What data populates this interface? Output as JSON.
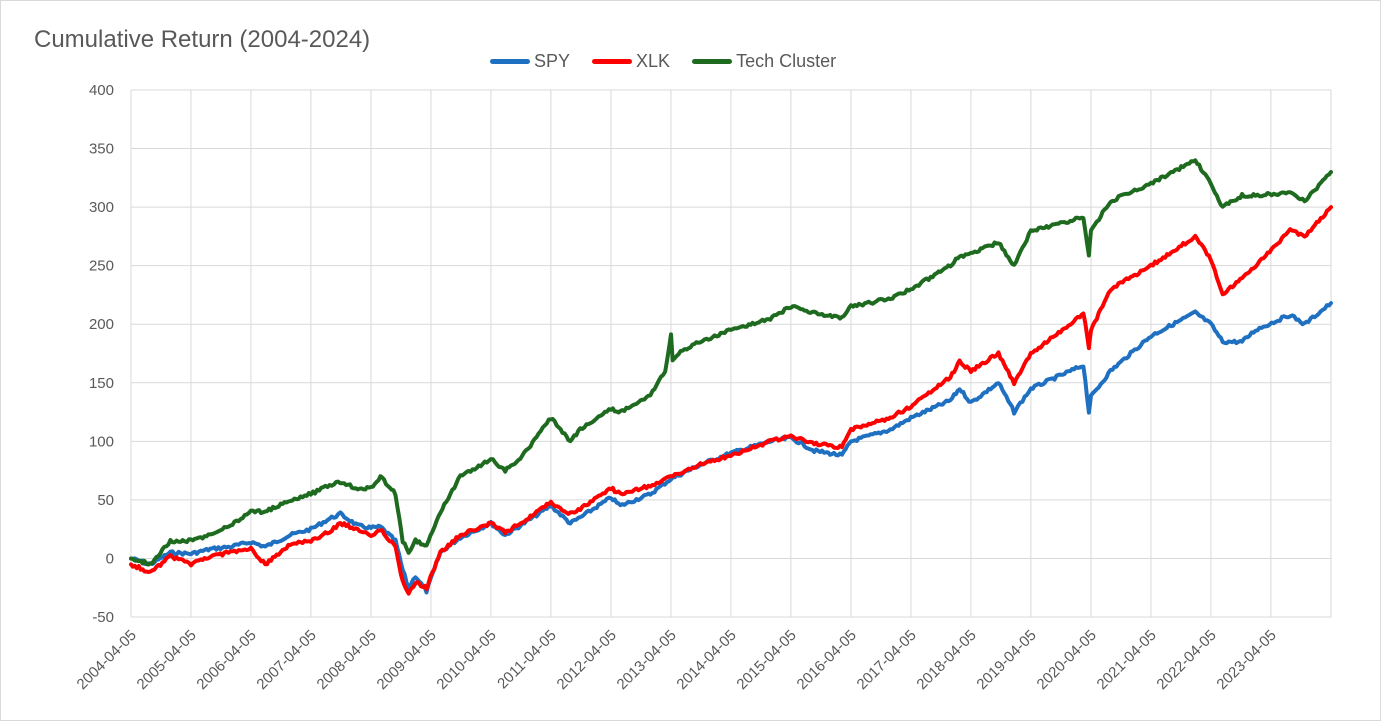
{
  "chart_data": {
    "type": "line",
    "title": "Cumulative Return (2004-2024)",
    "xlabel": "",
    "ylabel": "",
    "ylim": [
      -50,
      400
    ],
    "yticks": [
      -50,
      0,
      50,
      100,
      150,
      200,
      250,
      300,
      350,
      400
    ],
    "grid": true,
    "legend_position": "top",
    "x_start": "2004-04-05",
    "x_end": "2024-04-05",
    "xtick_labels": [
      "2004-04-05",
      "2005-04-05",
      "2006-04-05",
      "2007-04-05",
      "2008-04-05",
      "2009-04-05",
      "2010-04-05",
      "2011-04-05",
      "2012-04-05",
      "2013-04-05",
      "2014-04-05",
      "2015-04-05",
      "2016-04-05",
      "2017-04-05",
      "2018-04-05",
      "2019-04-05",
      "2020-04-05",
      "2021-04-05",
      "2022-04-05",
      "2023-04-05"
    ],
    "series": [
      {
        "name": "SPY",
        "color": "#1f70c1",
        "points": [
          [
            "2004-04-05",
            0
          ],
          [
            "2004-08-01",
            -5
          ],
          [
            "2004-12-01",
            5
          ],
          [
            "2005-04-05",
            4
          ],
          [
            "2005-08-01",
            8
          ],
          [
            "2005-12-01",
            10
          ],
          [
            "2006-04-05",
            14
          ],
          [
            "2006-07-01",
            10
          ],
          [
            "2006-12-01",
            20
          ],
          [
            "2007-04-05",
            25
          ],
          [
            "2007-07-15",
            33
          ],
          [
            "2007-10-01",
            38
          ],
          [
            "2008-01-15",
            28
          ],
          [
            "2008-04-05",
            26
          ],
          [
            "2008-06-01",
            27
          ],
          [
            "2008-09-01",
            15
          ],
          [
            "2008-10-15",
            -10
          ],
          [
            "2008-11-20",
            -25
          ],
          [
            "2009-01-01",
            -15
          ],
          [
            "2009-03-09",
            -28
          ],
          [
            "2009-06-01",
            5
          ],
          [
            "2009-10-01",
            18
          ],
          [
            "2010-04-05",
            30
          ],
          [
            "2010-07-01",
            20
          ],
          [
            "2010-10-01",
            28
          ],
          [
            "2011-04-05",
            45
          ],
          [
            "2011-08-01",
            30
          ],
          [
            "2011-10-01",
            35
          ],
          [
            "2012-04-05",
            52
          ],
          [
            "2012-06-01",
            45
          ],
          [
            "2012-12-01",
            55
          ],
          [
            "2013-04-05",
            68
          ],
          [
            "2013-10-01",
            80
          ],
          [
            "2014-04-05",
            90
          ],
          [
            "2014-12-01",
            100
          ],
          [
            "2015-04-05",
            103
          ],
          [
            "2015-08-25",
            92
          ],
          [
            "2016-02-10",
            88
          ],
          [
            "2016-04-05",
            100
          ],
          [
            "2016-12-01",
            110
          ],
          [
            "2017-04-05",
            120
          ],
          [
            "2017-12-01",
            135
          ],
          [
            "2018-01-26",
            145
          ],
          [
            "2018-04-05",
            133
          ],
          [
            "2018-09-20",
            150
          ],
          [
            "2018-12-24",
            125
          ],
          [
            "2019-04-05",
            145
          ],
          [
            "2019-12-01",
            160
          ],
          [
            "2020-02-19",
            165
          ],
          [
            "2020-03-23",
            125
          ],
          [
            "2020-04-05",
            138
          ],
          [
            "2020-08-01",
            160
          ],
          [
            "2021-04-05",
            190
          ],
          [
            "2021-12-31",
            210
          ],
          [
            "2022-04-05",
            200
          ],
          [
            "2022-06-16",
            185
          ],
          [
            "2022-10-12",
            185
          ],
          [
            "2023-01-01",
            195
          ],
          [
            "2023-07-31",
            208
          ],
          [
            "2023-10-27",
            200
          ],
          [
            "2024-04-05",
            218
          ]
        ]
      },
      {
        "name": "XLK",
        "color": "#ff0000",
        "points": [
          [
            "2004-04-05",
            -5
          ],
          [
            "2004-08-01",
            -12
          ],
          [
            "2004-12-01",
            2
          ],
          [
            "2005-04-05",
            -5
          ],
          [
            "2005-08-01",
            2
          ],
          [
            "2005-12-01",
            5
          ],
          [
            "2006-04-05",
            8
          ],
          [
            "2006-07-01",
            -5
          ],
          [
            "2006-12-01",
            12
          ],
          [
            "2007-04-05",
            15
          ],
          [
            "2007-07-15",
            22
          ],
          [
            "2007-10-01",
            30
          ],
          [
            "2008-01-15",
            25
          ],
          [
            "2008-04-05",
            20
          ],
          [
            "2008-06-01",
            25
          ],
          [
            "2008-09-01",
            10
          ],
          [
            "2008-10-15",
            -20
          ],
          [
            "2008-11-20",
            -30
          ],
          [
            "2009-01-01",
            -20
          ],
          [
            "2009-03-09",
            -25
          ],
          [
            "2009-06-01",
            5
          ],
          [
            "2009-10-01",
            20
          ],
          [
            "2010-04-05",
            30
          ],
          [
            "2010-07-01",
            22
          ],
          [
            "2010-10-01",
            30
          ],
          [
            "2011-04-05",
            48
          ],
          [
            "2011-08-01",
            38
          ],
          [
            "2011-10-01",
            42
          ],
          [
            "2012-04-05",
            60
          ],
          [
            "2012-06-01",
            55
          ],
          [
            "2012-12-01",
            62
          ],
          [
            "2013-04-05",
            70
          ],
          [
            "2013-10-01",
            80
          ],
          [
            "2014-04-05",
            88
          ],
          [
            "2014-12-01",
            100
          ],
          [
            "2015-04-05",
            105
          ],
          [
            "2015-08-25",
            98
          ],
          [
            "2016-02-10",
            95
          ],
          [
            "2016-04-05",
            110
          ],
          [
            "2016-12-01",
            120
          ],
          [
            "2017-04-05",
            130
          ],
          [
            "2017-12-01",
            155
          ],
          [
            "2018-01-26",
            168
          ],
          [
            "2018-04-05",
            160
          ],
          [
            "2018-09-20",
            175
          ],
          [
            "2018-12-24",
            150
          ],
          [
            "2019-04-05",
            175
          ],
          [
            "2019-12-01",
            200
          ],
          [
            "2020-02-19",
            210
          ],
          [
            "2020-03-23",
            180
          ],
          [
            "2020-04-05",
            195
          ],
          [
            "2020-08-01",
            230
          ],
          [
            "2021-04-05",
            250
          ],
          [
            "2021-12-31",
            275
          ],
          [
            "2022-04-05",
            255
          ],
          [
            "2022-06-16",
            225
          ],
          [
            "2022-10-12",
            240
          ],
          [
            "2023-01-01",
            250
          ],
          [
            "2023-07-31",
            280
          ],
          [
            "2023-10-27",
            275
          ],
          [
            "2024-04-05",
            300
          ]
        ]
      },
      {
        "name": "Tech Cluster",
        "color": "#1e6b20",
        "points": [
          [
            "2004-04-05",
            0
          ],
          [
            "2004-08-01",
            -5
          ],
          [
            "2004-12-01",
            15
          ],
          [
            "2005-04-05",
            15
          ],
          [
            "2005-08-01",
            20
          ],
          [
            "2005-12-01",
            28
          ],
          [
            "2006-04-05",
            40
          ],
          [
            "2006-07-01",
            40
          ],
          [
            "2006-12-01",
            50
          ],
          [
            "2007-04-05",
            55
          ],
          [
            "2007-07-15",
            62
          ],
          [
            "2007-10-01",
            65
          ],
          [
            "2008-01-15",
            60
          ],
          [
            "2008-04-05",
            60
          ],
          [
            "2008-06-01",
            70
          ],
          [
            "2008-09-01",
            55
          ],
          [
            "2008-10-15",
            15
          ],
          [
            "2008-11-20",
            5
          ],
          [
            "2009-01-01",
            15
          ],
          [
            "2009-03-09",
            10
          ],
          [
            "2009-06-01",
            40
          ],
          [
            "2009-10-01",
            70
          ],
          [
            "2010-04-05",
            85
          ],
          [
            "2010-07-01",
            75
          ],
          [
            "2010-10-01",
            85
          ],
          [
            "2011-04-05",
            120
          ],
          [
            "2011-08-01",
            100
          ],
          [
            "2011-10-01",
            110
          ],
          [
            "2012-04-05",
            128
          ],
          [
            "2012-06-01",
            125
          ],
          [
            "2012-12-01",
            140
          ],
          [
            "2013-03-01",
            160
          ],
          [
            "2013-04-05",
            190
          ],
          [
            "2013-04-15",
            170
          ],
          [
            "2013-06-15",
            178
          ],
          [
            "2013-10-01",
            185
          ],
          [
            "2014-04-05",
            195
          ],
          [
            "2014-12-01",
            205
          ],
          [
            "2015-04-05",
            215
          ],
          [
            "2015-08-25",
            210
          ],
          [
            "2016-02-10",
            205
          ],
          [
            "2016-04-05",
            215
          ],
          [
            "2016-12-01",
            222
          ],
          [
            "2017-04-05",
            230
          ],
          [
            "2017-12-01",
            250
          ],
          [
            "2018-01-26",
            258
          ],
          [
            "2018-04-05",
            260
          ],
          [
            "2018-09-20",
            270
          ],
          [
            "2018-12-24",
            250
          ],
          [
            "2019-04-05",
            280
          ],
          [
            "2019-12-01",
            288
          ],
          [
            "2020-02-19",
            292
          ],
          [
            "2020-03-23",
            258
          ],
          [
            "2020-04-05",
            280
          ],
          [
            "2020-08-01",
            305
          ],
          [
            "2021-04-05",
            320
          ],
          [
            "2021-12-31",
            340
          ],
          [
            "2022-04-05",
            320
          ],
          [
            "2022-06-16",
            300
          ],
          [
            "2022-10-12",
            310
          ],
          [
            "2023-01-01",
            310
          ],
          [
            "2023-07-31",
            312
          ],
          [
            "2023-10-27",
            305
          ],
          [
            "2024-04-05",
            330
          ]
        ]
      }
    ]
  }
}
